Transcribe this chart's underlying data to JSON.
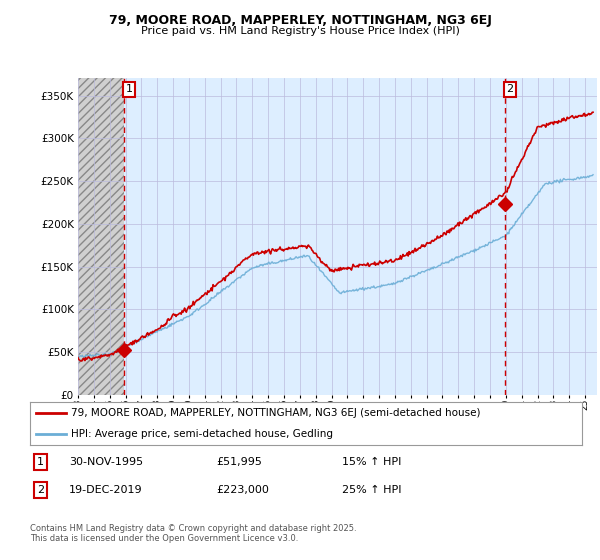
{
  "title1": "79, MOORE ROAD, MAPPERLEY, NOTTINGHAM, NG3 6EJ",
  "title2": "Price paid vs. HM Land Registry's House Price Index (HPI)",
  "ylabel_ticks": [
    "£0",
    "£50K",
    "£100K",
    "£150K",
    "£200K",
    "£250K",
    "£300K",
    "£350K"
  ],
  "ytick_values": [
    0,
    50000,
    100000,
    150000,
    200000,
    250000,
    300000,
    350000
  ],
  "ylim": [
    0,
    370000
  ],
  "xlim_start": 1993.0,
  "xlim_end": 2025.75,
  "sale1_date": 1995.92,
  "sale1_price": 51995,
  "sale2_date": 2019.97,
  "sale2_price": 223000,
  "legend_line1": "79, MOORE ROAD, MAPPERLEY, NOTTINGHAM, NG3 6EJ (semi-detached house)",
  "legend_line2": "HPI: Average price, semi-detached house, Gedling",
  "footer": "Contains HM Land Registry data © Crown copyright and database right 2025.\nThis data is licensed under the Open Government Licence v3.0.",
  "hpi_color": "#6baed6",
  "price_color": "#cc0000",
  "vline_color": "#cc0000",
  "chart_bg": "#ddeeff",
  "hatch_bg": "#cccccc",
  "grid_color": "#aaaacc"
}
